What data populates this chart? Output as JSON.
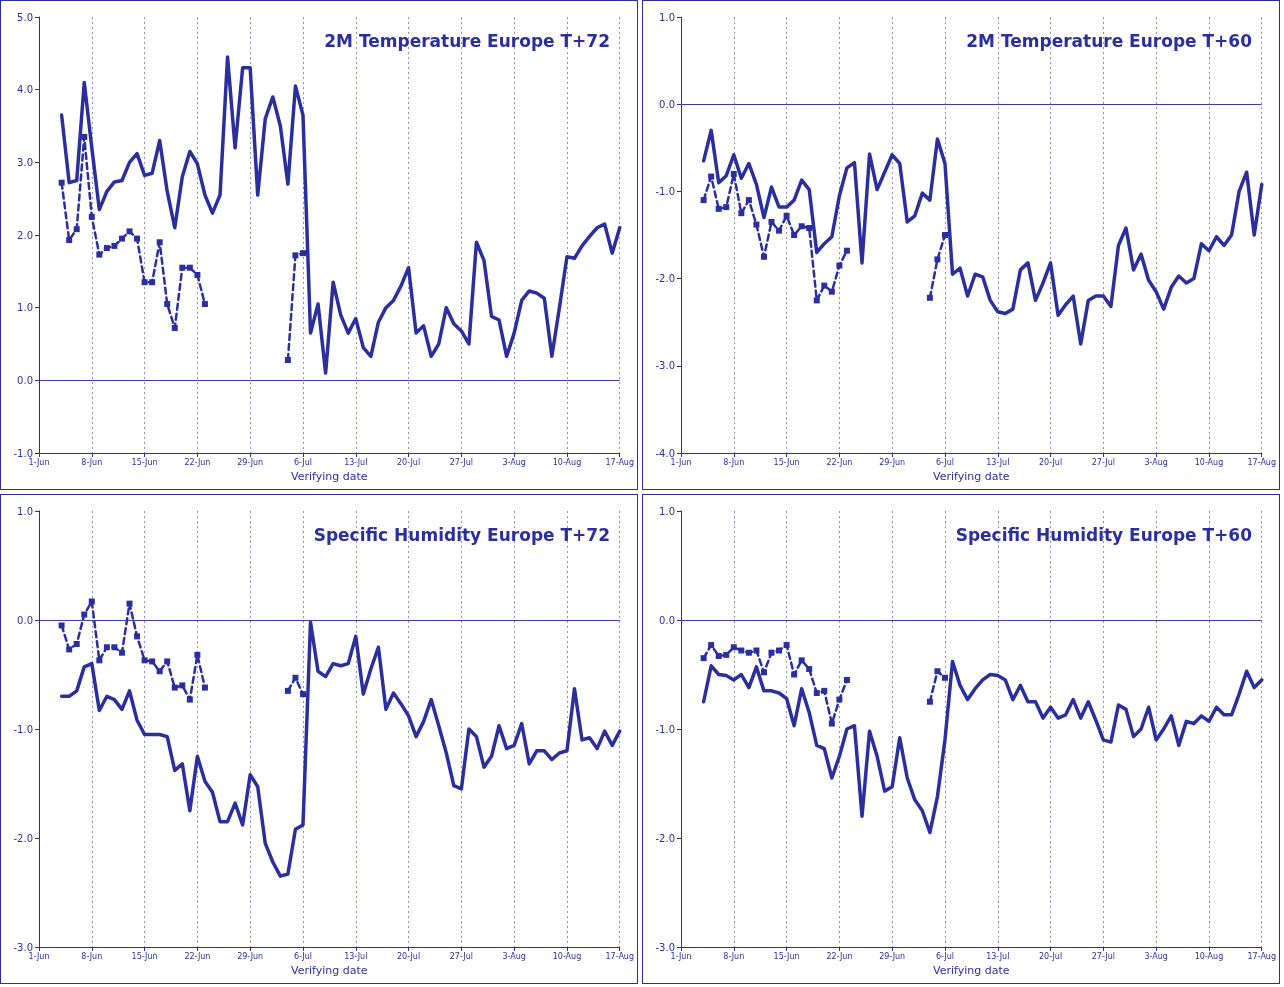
{
  "chart_data": [
    {
      "type": "line",
      "title": "2M Temperature Europe T+72",
      "xlabel": "Verifying date",
      "grid": "x",
      "x": [
        "--06-04",
        "--06-05",
        "--06-06",
        "--06-07",
        "--06-08",
        "--06-09",
        "--06-10",
        "--06-11",
        "--06-12",
        "--06-13",
        "--06-14",
        "--06-15",
        "--06-16",
        "--06-17",
        "--06-18",
        "--06-19",
        "--06-20",
        "--06-21",
        "--06-22",
        "--06-23",
        "--06-24",
        "--06-25",
        "--06-26",
        "--06-27",
        "--06-28",
        "--06-29",
        "--06-30",
        "--07-01",
        "--07-02",
        "--07-03",
        "--07-04",
        "--07-05",
        "--07-06",
        "--07-07",
        "--07-08",
        "--07-09",
        "--07-10",
        "--07-11",
        "--07-12",
        "--07-13",
        "--07-14",
        "--07-15",
        "--07-16",
        "--07-17",
        "--07-18",
        "--07-19",
        "--07-20",
        "--07-21",
        "--07-22",
        "--07-23",
        "--07-24",
        "--07-25",
        "--07-26",
        "--07-27",
        "--07-28",
        "--07-29",
        "--07-30",
        "--07-31",
        "--08-01",
        "--08-02",
        "--08-03",
        "--08-04",
        "--08-05",
        "--08-06",
        "--08-07",
        "--08-08",
        "--08-09",
        "--08-10",
        "--08-11",
        "--08-12",
        "--08-13",
        "--08-14",
        "--08-15",
        "--08-16",
        "--08-17"
      ],
      "xlim": [
        "--06-01",
        "--08-17"
      ],
      "xticks": [
        {
          "value": "--06-01",
          "label": "1-Jun"
        },
        {
          "value": "--06-08",
          "label": "8-Jun"
        },
        {
          "value": "--06-15",
          "label": "15-Jun"
        },
        {
          "value": "--06-22",
          "label": "22-Jun"
        },
        {
          "value": "--06-29",
          "label": "29-Jun"
        },
        {
          "value": "--07-06",
          "label": "6-Jul"
        },
        {
          "value": "--07-13",
          "label": "13-Jul"
        },
        {
          "value": "--07-20",
          "label": "20-Jul"
        },
        {
          "value": "--07-27",
          "label": "27-Jul"
        },
        {
          "value": "--08-03",
          "label": "3-Aug"
        },
        {
          "value": "--08-10",
          "label": "10-Aug"
        },
        {
          "value": "--08-17",
          "label": "17-Aug"
        }
      ],
      "ylim": [
        -1,
        5
      ],
      "yticks": [
        {
          "value": -1,
          "label": "-1.0"
        },
        {
          "value": 0,
          "label": "0.0"
        },
        {
          "value": 1,
          "label": "1.0"
        },
        {
          "value": 2,
          "label": "2.0"
        },
        {
          "value": 3,
          "label": "3.0"
        },
        {
          "value": 4,
          "label": "4.0"
        },
        {
          "value": 5,
          "label": "5.0"
        }
      ],
      "ref_lines": [
        {
          "axis": "y",
          "value": 0,
          "color": "#3a3fa8"
        }
      ],
      "series": [
        {
          "color": "#2b2f9e",
          "line_style": "solid",
          "values": [
            3.65,
            2.72,
            2.75,
            4.1,
            3.2,
            2.35,
            2.6,
            2.73,
            2.75,
            3.0,
            3.12,
            2.82,
            2.85,
            3.3,
            2.6,
            2.1,
            2.8,
            3.15,
            2.98,
            2.55,
            2.3,
            2.55,
            4.45,
            3.2,
            4.3,
            4.3,
            2.55,
            3.6,
            3.9,
            3.5,
            2.7,
            4.05,
            3.65,
            0.65,
            1.05,
            0.1,
            1.35,
            0.9,
            0.65,
            0.85,
            0.45,
            0.33,
            0.8,
            1.0,
            1.1,
            1.3,
            1.55,
            0.65,
            0.75,
            0.33,
            0.5,
            1.0,
            0.78,
            0.68,
            0.5,
            1.9,
            1.65,
            0.88,
            0.83,
            0.33,
            0.65,
            1.1,
            1.23,
            1.2,
            1.13,
            0.33,
            1.0,
            1.7,
            1.68,
            1.85,
            1.98,
            2.1,
            2.15,
            1.75,
            2.1
          ]
        },
        {
          "color": "#2b2f9e",
          "line_style": "dashed",
          "marker": "square",
          "values": [
            2.72,
            1.93,
            2.08,
            3.35,
            2.25,
            1.73,
            1.82,
            1.85,
            1.95,
            2.05,
            1.95,
            1.35,
            1.35,
            1.9,
            1.05,
            0.72,
            1.55,
            1.55,
            1.45,
            1.05,
            null,
            null,
            null,
            null,
            null,
            null,
            null,
            null,
            null,
            null,
            0.28,
            1.72,
            1.75,
            null,
            null,
            null,
            null,
            null,
            null,
            null,
            null,
            null,
            null,
            null,
            null,
            null,
            null,
            null,
            null,
            null,
            null,
            null,
            null,
            null,
            null,
            null,
            null,
            null,
            null,
            null,
            null,
            null,
            null,
            null,
            null,
            null,
            null,
            null,
            null,
            null,
            null,
            null,
            null,
            null,
            null
          ]
        }
      ]
    },
    {
      "type": "line",
      "title": "2M Temperature Europe T+60",
      "xlabel": "Verifying date",
      "grid": "x",
      "x": [
        "--06-04",
        "--06-05",
        "--06-06",
        "--06-07",
        "--06-08",
        "--06-09",
        "--06-10",
        "--06-11",
        "--06-12",
        "--06-13",
        "--06-14",
        "--06-15",
        "--06-16",
        "--06-17",
        "--06-18",
        "--06-19",
        "--06-20",
        "--06-21",
        "--06-22",
        "--06-23",
        "--06-24",
        "--06-25",
        "--06-26",
        "--06-27",
        "--06-28",
        "--06-29",
        "--06-30",
        "--07-01",
        "--07-02",
        "--07-03",
        "--07-04",
        "--07-05",
        "--07-06",
        "--07-07",
        "--07-08",
        "--07-09",
        "--07-10",
        "--07-11",
        "--07-12",
        "--07-13",
        "--07-14",
        "--07-15",
        "--07-16",
        "--07-17",
        "--07-18",
        "--07-19",
        "--07-20",
        "--07-21",
        "--07-22",
        "--07-23",
        "--07-24",
        "--07-25",
        "--07-26",
        "--07-27",
        "--07-28",
        "--07-29",
        "--07-30",
        "--07-31",
        "--08-01",
        "--08-02",
        "--08-03",
        "--08-04",
        "--08-05",
        "--08-06",
        "--08-07",
        "--08-08",
        "--08-09",
        "--08-10",
        "--08-11",
        "--08-12",
        "--08-13",
        "--08-14",
        "--08-15",
        "--08-16",
        "--08-17"
      ],
      "xlim": [
        "--06-01",
        "--08-17"
      ],
      "xticks": [
        {
          "value": "--06-01",
          "label": "1-Jun"
        },
        {
          "value": "--06-08",
          "label": "8-Jun"
        },
        {
          "value": "--06-15",
          "label": "15-Jun"
        },
        {
          "value": "--06-22",
          "label": "22-Jun"
        },
        {
          "value": "--06-29",
          "label": "29-Jun"
        },
        {
          "value": "--07-06",
          "label": "6-Jul"
        },
        {
          "value": "--07-13",
          "label": "13-Jul"
        },
        {
          "value": "--07-20",
          "label": "20-Jul"
        },
        {
          "value": "--07-27",
          "label": "27-Jul"
        },
        {
          "value": "--08-03",
          "label": "3-Aug"
        },
        {
          "value": "--08-10",
          "label": "10-Aug"
        },
        {
          "value": "--08-17",
          "label": "17-Aug"
        }
      ],
      "ylim": [
        -4,
        1
      ],
      "yticks": [
        {
          "value": -4,
          "label": "-4.0"
        },
        {
          "value": -3,
          "label": "-3.0"
        },
        {
          "value": -2,
          "label": "-2.0"
        },
        {
          "value": -1,
          "label": "-1.0"
        },
        {
          "value": 0,
          "label": "0.0"
        },
        {
          "value": 1,
          "label": "1.0"
        }
      ],
      "ref_lines": [
        {
          "axis": "y",
          "value": 0,
          "color": "#3a3fa8"
        }
      ],
      "series": [
        {
          "color": "#2b2f9e",
          "line_style": "solid",
          "values": [
            -0.65,
            -0.3,
            -0.9,
            -0.82,
            -0.58,
            -0.85,
            -0.68,
            -0.92,
            -1.3,
            -0.95,
            -1.18,
            -1.18,
            -1.1,
            -0.87,
            -0.98,
            -1.7,
            -1.6,
            -1.52,
            -1.05,
            -0.73,
            -0.67,
            -1.82,
            -0.57,
            -0.98,
            -0.78,
            -0.58,
            -0.68,
            -1.35,
            -1.28,
            -1.02,
            -1.1,
            -0.4,
            -0.68,
            -1.95,
            -1.88,
            -2.2,
            -1.95,
            -1.98,
            -2.25,
            -2.38,
            -2.4,
            -2.35,
            -1.9,
            -1.82,
            -2.25,
            -2.05,
            -1.82,
            -2.42,
            -2.3,
            -2.2,
            -2.75,
            -2.25,
            -2.2,
            -2.2,
            -2.32,
            -1.62,
            -1.42,
            -1.9,
            -1.72,
            -2.02,
            -2.15,
            -2.35,
            -2.1,
            -1.97,
            -2.05,
            -2.0,
            -1.6,
            -1.68,
            -1.52,
            -1.62,
            -1.5,
            -1.0,
            -0.78,
            -1.5,
            -0.92
          ]
        },
        {
          "color": "#2b2f9e",
          "line_style": "dashed",
          "marker": "square",
          "values": [
            -1.1,
            -0.83,
            -1.2,
            -1.18,
            -0.8,
            -1.25,
            -1.1,
            -1.38,
            -1.75,
            -1.35,
            -1.45,
            -1.28,
            -1.5,
            -1.4,
            -1.42,
            -2.25,
            -2.08,
            -2.15,
            -1.85,
            -1.68,
            null,
            null,
            null,
            null,
            null,
            null,
            null,
            null,
            null,
            null,
            -2.22,
            -1.78,
            -1.5,
            null,
            null,
            null,
            null,
            null,
            null,
            null,
            null,
            null,
            null,
            null,
            null,
            null,
            null,
            null,
            null,
            null,
            null,
            null,
            null,
            null,
            null,
            null,
            null,
            null,
            null,
            null,
            null,
            null,
            null,
            null,
            null,
            null,
            null,
            null,
            null,
            null,
            null,
            null,
            null,
            null,
            null
          ]
        }
      ]
    },
    {
      "type": "line",
      "title": "Specific Humidity Europe T+72",
      "xlabel": "Verifying date",
      "grid": "x",
      "x": [
        "--06-04",
        "--06-05",
        "--06-06",
        "--06-07",
        "--06-08",
        "--06-09",
        "--06-10",
        "--06-11",
        "--06-12",
        "--06-13",
        "--06-14",
        "--06-15",
        "--06-16",
        "--06-17",
        "--06-18",
        "--06-19",
        "--06-20",
        "--06-21",
        "--06-22",
        "--06-23",
        "--06-24",
        "--06-25",
        "--06-26",
        "--06-27",
        "--06-28",
        "--06-29",
        "--06-30",
        "--07-01",
        "--07-02",
        "--07-03",
        "--07-04",
        "--07-05",
        "--07-06",
        "--07-07",
        "--07-08",
        "--07-09",
        "--07-10",
        "--07-11",
        "--07-12",
        "--07-13",
        "--07-14",
        "--07-15",
        "--07-16",
        "--07-17",
        "--07-18",
        "--07-19",
        "--07-20",
        "--07-21",
        "--07-22",
        "--07-23",
        "--07-24",
        "--07-25",
        "--07-26",
        "--07-27",
        "--07-28",
        "--07-29",
        "--07-30",
        "--07-31",
        "--08-01",
        "--08-02",
        "--08-03",
        "--08-04",
        "--08-05",
        "--08-06",
        "--08-07",
        "--08-08",
        "--08-09",
        "--08-10",
        "--08-11",
        "--08-12",
        "--08-13",
        "--08-14",
        "--08-15",
        "--08-16",
        "--08-17"
      ],
      "xlim": [
        "--06-01",
        "--08-17"
      ],
      "xticks": [
        {
          "value": "--06-01",
          "label": "1-Jun"
        },
        {
          "value": "--06-08",
          "label": "8-Jun"
        },
        {
          "value": "--06-15",
          "label": "15-Jun"
        },
        {
          "value": "--06-22",
          "label": "22-Jun"
        },
        {
          "value": "--06-29",
          "label": "29-Jun"
        },
        {
          "value": "--07-06",
          "label": "6-Jul"
        },
        {
          "value": "--07-13",
          "label": "13-Jul"
        },
        {
          "value": "--07-20",
          "label": "20-Jul"
        },
        {
          "value": "--07-27",
          "label": "27-Jul"
        },
        {
          "value": "--08-03",
          "label": "3-Aug"
        },
        {
          "value": "--08-10",
          "label": "10-Aug"
        },
        {
          "value": "--08-17",
          "label": "17-Aug"
        }
      ],
      "ylim": [
        -3,
        1
      ],
      "yticks": [
        {
          "value": -3,
          "label": "-3.0"
        },
        {
          "value": -2,
          "label": "-2.0"
        },
        {
          "value": -1,
          "label": "-1.0"
        },
        {
          "value": 0,
          "label": "0.0"
        },
        {
          "value": 1,
          "label": "1.0"
        }
      ],
      "ref_lines": [
        {
          "axis": "y",
          "value": 0,
          "color": "#3a3fa8"
        }
      ],
      "series": [
        {
          "color": "#2b2f9e",
          "line_style": "solid",
          "values": [
            -0.7,
            -0.7,
            -0.65,
            -0.43,
            -0.4,
            -0.83,
            -0.7,
            -0.73,
            -0.82,
            -0.65,
            -0.92,
            -1.05,
            -1.05,
            -1.05,
            -1.07,
            -1.38,
            -1.32,
            -1.75,
            -1.25,
            -1.48,
            -1.58,
            -1.85,
            -1.85,
            -1.68,
            -1.88,
            -1.42,
            -1.53,
            -2.05,
            -2.22,
            -2.35,
            -2.33,
            -1.92,
            -1.88,
            -0.02,
            -0.47,
            -0.52,
            -0.4,
            -0.42,
            -0.4,
            -0.15,
            -0.68,
            -0.45,
            -0.25,
            -0.82,
            -0.67,
            -0.77,
            -0.88,
            -1.07,
            -0.93,
            -0.73,
            -0.97,
            -1.22,
            -1.52,
            -1.55,
            -1.0,
            -1.07,
            -1.35,
            -1.25,
            -0.97,
            -1.18,
            -1.15,
            -0.95,
            -1.32,
            -1.2,
            -1.2,
            -1.28,
            -1.22,
            -1.2,
            -0.63,
            -1.1,
            -1.08,
            -1.18,
            -1.02,
            -1.15,
            -1.02
          ]
        },
        {
          "color": "#2b2f9e",
          "line_style": "dashed",
          "marker": "square",
          "values": [
            -0.05,
            -0.27,
            -0.22,
            0.05,
            0.17,
            -0.37,
            -0.25,
            -0.25,
            -0.3,
            0.15,
            -0.15,
            -0.37,
            -0.38,
            -0.47,
            -0.38,
            -0.62,
            -0.6,
            -0.73,
            -0.32,
            -0.62,
            null,
            null,
            null,
            null,
            null,
            null,
            null,
            null,
            null,
            null,
            -0.65,
            -0.53,
            -0.68,
            null,
            null,
            null,
            null,
            null,
            null,
            null,
            null,
            null,
            null,
            null,
            null,
            null,
            null,
            null,
            null,
            null,
            null,
            null,
            null,
            null,
            null,
            null,
            null,
            null,
            null,
            null,
            null,
            null,
            null,
            null,
            null,
            null,
            null,
            null,
            null,
            null,
            null,
            null,
            null,
            null,
            null
          ]
        }
      ]
    },
    {
      "type": "line",
      "title": "Specific Humidity Europe T+60",
      "xlabel": "Verifying date",
      "grid": "x",
      "x": [
        "--06-04",
        "--06-05",
        "--06-06",
        "--06-07",
        "--06-08",
        "--06-09",
        "--06-10",
        "--06-11",
        "--06-12",
        "--06-13",
        "--06-14",
        "--06-15",
        "--06-16",
        "--06-17",
        "--06-18",
        "--06-19",
        "--06-20",
        "--06-21",
        "--06-22",
        "--06-23",
        "--06-24",
        "--06-25",
        "--06-26",
        "--06-27",
        "--06-28",
        "--06-29",
        "--06-30",
        "--07-01",
        "--07-02",
        "--07-03",
        "--07-04",
        "--07-05",
        "--07-06",
        "--07-07",
        "--07-08",
        "--07-09",
        "--07-10",
        "--07-11",
        "--07-12",
        "--07-13",
        "--07-14",
        "--07-15",
        "--07-16",
        "--07-17",
        "--07-18",
        "--07-19",
        "--07-20",
        "--07-21",
        "--07-22",
        "--07-23",
        "--07-24",
        "--07-25",
        "--07-26",
        "--07-27",
        "--07-28",
        "--07-29",
        "--07-30",
        "--07-31",
        "--08-01",
        "--08-02",
        "--08-03",
        "--08-04",
        "--08-05",
        "--08-06",
        "--08-07",
        "--08-08",
        "--08-09",
        "--08-10",
        "--08-11",
        "--08-12",
        "--08-13",
        "--08-14",
        "--08-15",
        "--08-16",
        "--08-17"
      ],
      "xlim": [
        "--06-01",
        "--08-17"
      ],
      "xticks": [
        {
          "value": "--06-01",
          "label": "1-Jun"
        },
        {
          "value": "--06-08",
          "label": "8-Jun"
        },
        {
          "value": "--06-15",
          "label": "15-Jun"
        },
        {
          "value": "--06-22",
          "label": "22-Jun"
        },
        {
          "value": "--06-29",
          "label": "29-Jun"
        },
        {
          "value": "--07-06",
          "label": "6-Jul"
        },
        {
          "value": "--07-13",
          "label": "13-Jul"
        },
        {
          "value": "--07-20",
          "label": "20-Jul"
        },
        {
          "value": "--07-27",
          "label": "27-Jul"
        },
        {
          "value": "--08-03",
          "label": "3-Aug"
        },
        {
          "value": "--08-10",
          "label": "10-Aug"
        },
        {
          "value": "--08-17",
          "label": "17-Aug"
        }
      ],
      "ylim": [
        -3,
        1
      ],
      "yticks": [
        {
          "value": -3,
          "label": "-3.0"
        },
        {
          "value": -2,
          "label": "-2.0"
        },
        {
          "value": -1,
          "label": "-1.0"
        },
        {
          "value": 0,
          "label": "0.0"
        },
        {
          "value": 1,
          "label": "1.0"
        }
      ],
      "ref_lines": [
        {
          "axis": "y",
          "value": 0,
          "color": "#3a3fa8"
        }
      ],
      "series": [
        {
          "color": "#2b2f9e",
          "line_style": "solid",
          "values": [
            -0.75,
            -0.42,
            -0.5,
            -0.51,
            -0.55,
            -0.5,
            -0.62,
            -0.43,
            -0.65,
            -0.65,
            -0.67,
            -0.72,
            -0.97,
            -0.63,
            -0.85,
            -1.15,
            -1.18,
            -1.45,
            -1.25,
            -1.0,
            -0.97,
            -1.8,
            -1.02,
            -1.25,
            -1.57,
            -1.53,
            -1.08,
            -1.45,
            -1.65,
            -1.75,
            -1.95,
            -1.62,
            -1.1,
            -0.38,
            -0.6,
            -0.73,
            -0.63,
            -0.55,
            -0.5,
            -0.51,
            -0.55,
            -0.73,
            -0.6,
            -0.75,
            -0.75,
            -0.9,
            -0.8,
            -0.9,
            -0.87,
            -0.73,
            -0.9,
            -0.75,
            -0.92,
            -1.1,
            -1.12,
            -0.78,
            -0.82,
            -1.07,
            -1.0,
            -0.8,
            -1.1,
            -1.0,
            -0.88,
            -1.15,
            -0.93,
            -0.95,
            -0.88,
            -0.93,
            -0.8,
            -0.87,
            -0.87,
            -0.68,
            -0.47,
            -0.62,
            -0.55
          ]
        },
        {
          "color": "#2b2f9e",
          "line_style": "dashed",
          "marker": "square",
          "values": [
            -0.35,
            -0.23,
            -0.33,
            -0.32,
            -0.25,
            -0.28,
            -0.3,
            -0.28,
            -0.48,
            -0.3,
            -0.28,
            -0.23,
            -0.5,
            -0.37,
            -0.45,
            -0.67,
            -0.65,
            -0.95,
            -0.73,
            -0.55,
            null,
            null,
            null,
            null,
            null,
            null,
            null,
            null,
            null,
            null,
            -0.75,
            -0.47,
            -0.53,
            null,
            null,
            null,
            null,
            null,
            null,
            null,
            null,
            null,
            null,
            null,
            null,
            null,
            null,
            null,
            null,
            null,
            null,
            null,
            null,
            null,
            null,
            null,
            null,
            null,
            null,
            null,
            null,
            null,
            null,
            null,
            null,
            null,
            null,
            null,
            null,
            null,
            null,
            null,
            null,
            null,
            null
          ]
        }
      ]
    }
  ]
}
